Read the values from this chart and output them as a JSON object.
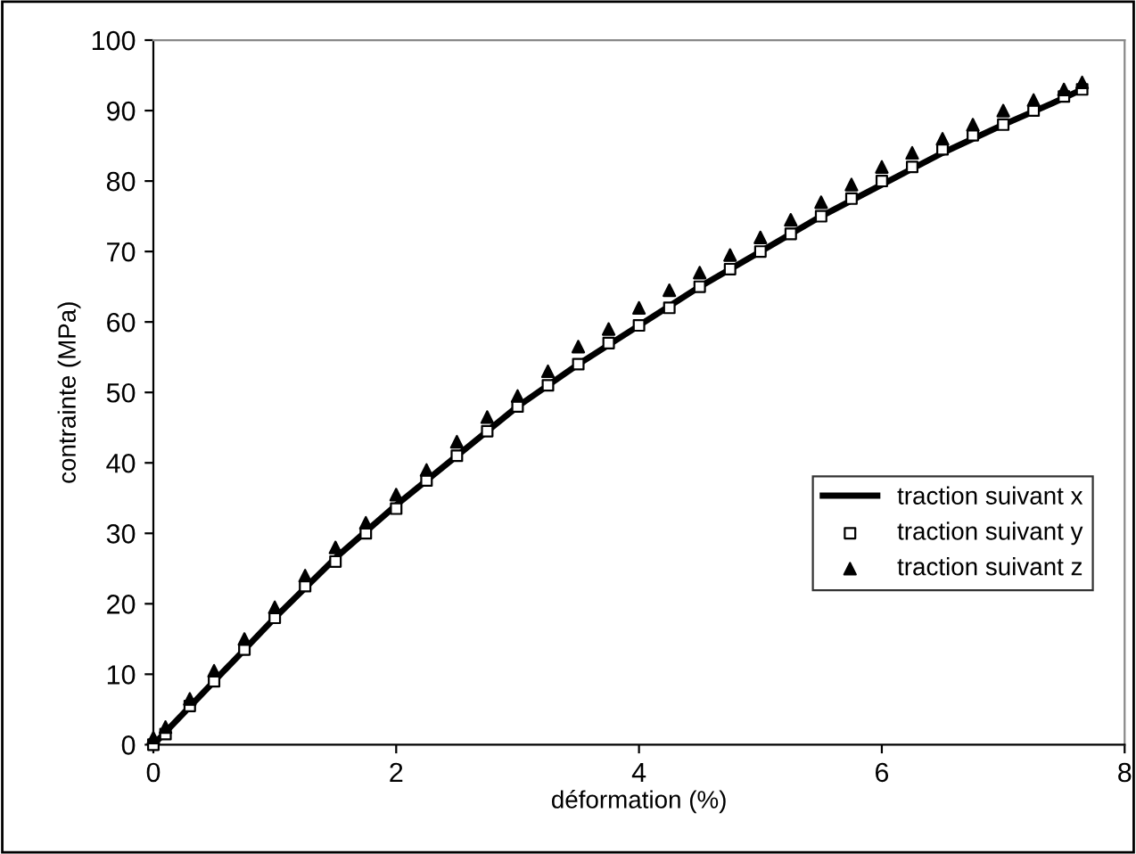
{
  "chart_data": {
    "type": "line",
    "xlabel": "déformation (%)",
    "ylabel": "contrainte (MPa)",
    "xlim": [
      0,
      8
    ],
    "xticks": [
      0,
      2,
      4,
      6,
      8
    ],
    "ylim": [
      0,
      100
    ],
    "yticks": [
      0,
      10,
      20,
      30,
      40,
      50,
      60,
      70,
      80,
      90,
      100
    ],
    "grid": false,
    "legend": "right",
    "series": [
      {
        "name": "traction suivant x",
        "color": "#000000",
        "marker": "none",
        "line_style": "solid",
        "x": [
          0,
          0.25,
          0.5,
          1,
          1.5,
          2,
          2.5,
          3,
          3.5,
          4,
          4.5,
          5,
          5.5,
          6,
          6.5,
          7,
          7.4,
          7.65
        ],
        "values": [
          0,
          4.5,
          9,
          18,
          26.5,
          34,
          41,
          48,
          54,
          59.5,
          65,
          70,
          75,
          79.5,
          84,
          88,
          91,
          93
        ]
      },
      {
        "name": "traction suivant y",
        "type": "scatter",
        "color": "#000000",
        "marker": "square",
        "x": [
          0,
          0.1,
          0.3,
          0.5,
          0.75,
          1,
          1.25,
          1.5,
          1.75,
          2,
          2.25,
          2.5,
          2.75,
          3,
          3.25,
          3.5,
          3.75,
          4,
          4.25,
          4.5,
          4.75,
          5,
          5.25,
          5.5,
          5.75,
          6,
          6.25,
          6.5,
          6.75,
          7,
          7.25,
          7.5,
          7.65
        ],
        "values": [
          0,
          1.5,
          5.5,
          9,
          13.5,
          18,
          22.5,
          26,
          30,
          33.5,
          37.5,
          41,
          44.5,
          48,
          51,
          54,
          57,
          59.5,
          62,
          65,
          67.5,
          70,
          72.5,
          75,
          77.5,
          80,
          82,
          84.5,
          86.5,
          88,
          90,
          92,
          93
        ]
      },
      {
        "name": "traction suivant z",
        "type": "scatter",
        "color": "#000000",
        "marker": "triangle",
        "x": [
          0,
          0.1,
          0.3,
          0.5,
          0.75,
          1,
          1.25,
          1.5,
          1.75,
          2,
          2.25,
          2.5,
          2.75,
          3,
          3.25,
          3.5,
          3.75,
          4,
          4.25,
          4.5,
          4.75,
          5,
          5.25,
          5.5,
          5.75,
          6,
          6.25,
          6.5,
          6.75,
          7,
          7.25,
          7.5,
          7.65
        ],
        "values": [
          1,
          2.5,
          6.5,
          10.5,
          15,
          19.5,
          24,
          28,
          31.5,
          35.5,
          39,
          43,
          46.5,
          49.5,
          53,
          56.5,
          59,
          62,
          64.5,
          67,
          69.5,
          72,
          74.5,
          77,
          79.5,
          82,
          84,
          86,
          88,
          90,
          91.5,
          93,
          94
        ]
      }
    ]
  }
}
